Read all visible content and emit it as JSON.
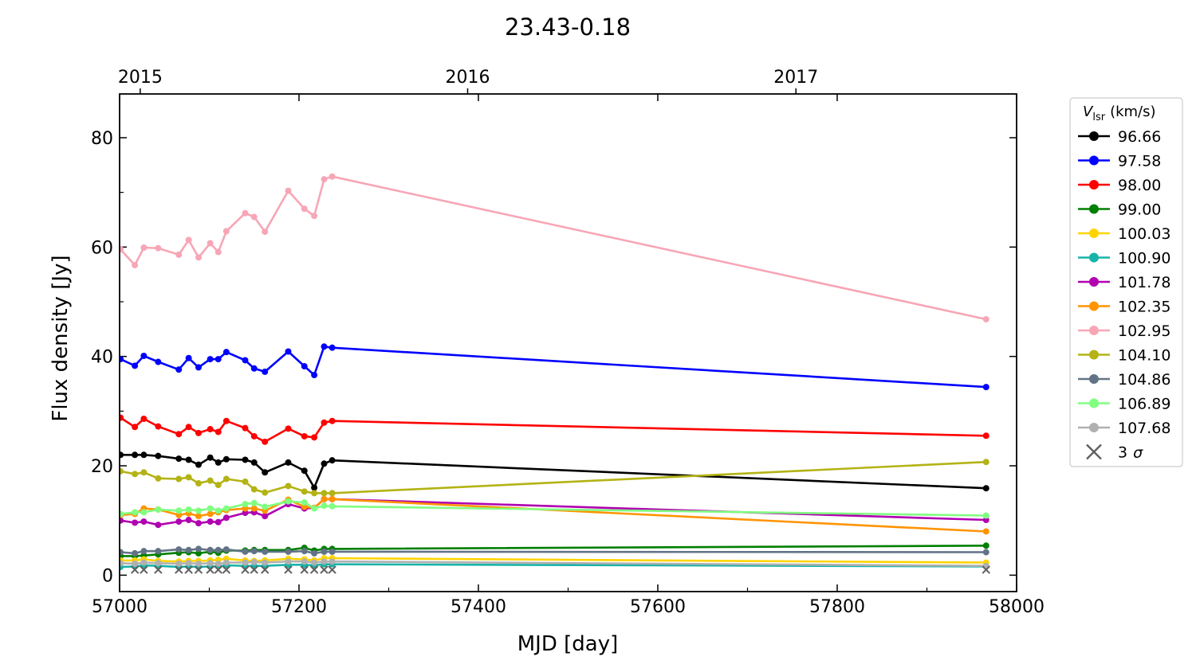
{
  "chart_data": {
    "type": "line",
    "title": "23.43-0.18",
    "xlabel": "MJD [day]",
    "ylabel": "Flux density [Jy]",
    "xlim": [
      57000,
      58000
    ],
    "ylim": [
      -3,
      88
    ],
    "x_ticks": [
      57000,
      57200,
      57400,
      57600,
      57800,
      58000
    ],
    "y_ticks": [
      0,
      20,
      40,
      60,
      80
    ],
    "top_axis": {
      "ticks": [
        {
          "label": "2015",
          "x": 57023
        },
        {
          "label": "2016",
          "x": 57388
        },
        {
          "label": "2017",
          "x": 57754
        }
      ]
    },
    "grid": false,
    "legend_position": "right, outside plot",
    "legend_title_main": "V",
    "legend_title_sub": "lsr",
    "legend_title_unit": "(km/s)",
    "x": [
      57001,
      57017,
      57027,
      57043,
      57066,
      57077,
      57088,
      57101,
      57110,
      57119,
      57140,
      57150,
      57162,
      57188,
      57206,
      57217,
      57228,
      57237,
      57966
    ],
    "series": [
      {
        "name": "96.66",
        "color": "#000000",
        "values": [
          22.0,
          22.0,
          22.0,
          21.8,
          21.3,
          21.1,
          20.2,
          21.5,
          20.6,
          21.2,
          21.1,
          20.6,
          18.8,
          20.6,
          19.1,
          16.0,
          20.4,
          21.0,
          15.9
        ]
      },
      {
        "name": "97.58",
        "color": "#0000ff",
        "values": [
          39.5,
          38.3,
          40.1,
          39.0,
          37.6,
          39.7,
          38.0,
          39.5,
          39.5,
          40.8,
          39.3,
          37.8,
          37.2,
          40.9,
          38.2,
          36.6,
          41.8,
          41.6,
          34.4
        ]
      },
      {
        "name": "98.00",
        "color": "#ff0000",
        "values": [
          28.8,
          27.1,
          28.6,
          27.2,
          25.8,
          27.1,
          26.0,
          26.7,
          26.2,
          28.2,
          26.9,
          25.4,
          24.4,
          26.8,
          25.4,
          25.2,
          27.9,
          28.2,
          25.5
        ]
      },
      {
        "name": "99.00",
        "color": "#007f00",
        "values": [
          3.5,
          3.5,
          3.6,
          3.8,
          4.1,
          4.2,
          4.0,
          4.3,
          4.1,
          4.5,
          4.5,
          4.6,
          4.6,
          4.6,
          5.0,
          4.5,
          4.8,
          4.8,
          5.4
        ]
      },
      {
        "name": "100.03",
        "color": "#ffd400",
        "values": [
          2.7,
          2.7,
          2.9,
          2.6,
          2.5,
          2.6,
          2.6,
          2.7,
          2.8,
          3.0,
          2.7,
          2.6,
          2.7,
          3.0,
          2.9,
          2.7,
          3.1,
          3.1,
          2.3
        ]
      },
      {
        "name": "100.90",
        "color": "#17b3a8",
        "values": [
          1.5,
          1.6,
          1.8,
          1.7,
          1.5,
          1.6,
          1.5,
          1.6,
          1.6,
          1.8,
          1.7,
          1.7,
          1.7,
          1.9,
          1.9,
          1.8,
          2.0,
          2.0,
          1.6
        ]
      },
      {
        "name": "101.78",
        "color": "#b000b0",
        "values": [
          10.0,
          9.6,
          9.8,
          9.2,
          9.8,
          10.1,
          9.5,
          9.8,
          9.7,
          10.5,
          11.4,
          11.5,
          10.8,
          13.0,
          12.2,
          12.3,
          13.9,
          13.9,
          10.1
        ]
      },
      {
        "name": "102.35",
        "color": "#ff9400",
        "values": [
          11.0,
          11.2,
          12.2,
          12.0,
          11.0,
          11.3,
          10.8,
          11.2,
          11.5,
          11.9,
          12.2,
          12.2,
          11.8,
          13.8,
          12.5,
          12.3,
          13.9,
          13.9,
          8.0
        ]
      },
      {
        "name": "102.95",
        "color": "#f7a6b6",
        "values": [
          59.6,
          56.7,
          59.9,
          59.8,
          58.6,
          61.3,
          58.1,
          60.7,
          59.1,
          62.9,
          66.2,
          65.5,
          62.8,
          70.3,
          67.0,
          65.7,
          72.4,
          72.9,
          46.8
        ]
      },
      {
        "name": "104.10",
        "color": "#b3b315",
        "values": [
          19.0,
          18.5,
          18.8,
          17.7,
          17.6,
          17.9,
          16.8,
          17.3,
          16.5,
          17.6,
          17.1,
          15.7,
          15.1,
          16.3,
          15.3,
          15.0,
          15.0,
          15.0,
          20.7
        ]
      },
      {
        "name": "104.86",
        "color": "#627386",
        "values": [
          4.2,
          4.0,
          4.4,
          4.4,
          4.7,
          4.6,
          4.8,
          4.6,
          4.6,
          4.7,
          4.3,
          4.4,
          4.3,
          4.3,
          4.4,
          4.0,
          4.3,
          4.3,
          4.2
        ]
      },
      {
        "name": "106.89",
        "color": "#80ff80",
        "values": [
          11.2,
          11.5,
          11.5,
          12.0,
          11.8,
          12.0,
          11.8,
          12.2,
          11.8,
          12.2,
          13.0,
          13.2,
          12.5,
          13.5,
          13.3,
          12.2,
          12.7,
          12.6,
          10.9
        ]
      },
      {
        "name": "107.68",
        "color": "#b0b0b0",
        "values": [
          2.2,
          2.1,
          2.3,
          2.2,
          2.1,
          2.2,
          2.1,
          2.2,
          2.1,
          2.3,
          2.3,
          2.4,
          2.3,
          2.5,
          2.5,
          2.3,
          2.5,
          2.5,
          1.7
        ]
      }
    ],
    "upper_limits": {
      "name": "3",
      "name_suffix": "σ",
      "color": "#606060",
      "x": [
        57017,
        57027,
        57043,
        57066,
        57077,
        57088,
        57101,
        57110,
        57119,
        57140,
        57150,
        57162,
        57188,
        57206,
        57217,
        57228,
        57237,
        57966
      ],
      "values": [
        1.0,
        1.0,
        1.0,
        1.0,
        1.0,
        1.0,
        1.0,
        1.0,
        1.0,
        1.0,
        1.0,
        1.0,
        1.0,
        1.0,
        1.0,
        1.0,
        1.0,
        1.0
      ]
    }
  }
}
